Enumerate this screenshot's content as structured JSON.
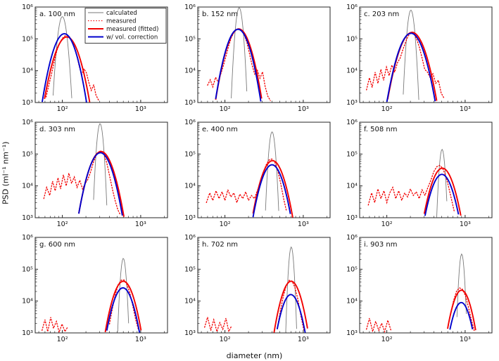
{
  "figure": {
    "xlabel": "diameter (nm)",
    "ylabel": "PSD (ml⁻¹ nm⁻¹)"
  },
  "legend": {
    "entries": [
      {
        "key": "calculated",
        "label": "calculated"
      },
      {
        "key": "measured",
        "label": "measured"
      },
      {
        "key": "measured_fitted",
        "label": "measured (fitted)"
      },
      {
        "key": "vol_correction",
        "label": "w/ vol. correction"
      }
    ]
  },
  "styles": {
    "calculated_color": "#7a7a7a",
    "measured_color": "#f20000",
    "fitted_color": "#f20000",
    "vol_correction_color": "#0000cd",
    "axis_color": "#262626",
    "background": "#ffffff"
  },
  "axes": {
    "x": {
      "scale": "log",
      "min": 45,
      "max": 2200,
      "major_ticks": [
        100,
        1000
      ],
      "tick_labels": [
        "10²",
        "10³"
      ],
      "minor_ticks": [
        50,
        60,
        70,
        80,
        90,
        200,
        300,
        400,
        500,
        600,
        700,
        800,
        900,
        2000
      ]
    },
    "y": {
      "scale": "log",
      "min": 1000,
      "max": 1000000,
      "major_ticks": [
        1000,
        10000,
        100000,
        1000000
      ],
      "tick_labels": [
        "10³",
        "10⁴",
        "10⁵",
        "10⁶"
      ]
    }
  },
  "chart_data": {
    "type": "line",
    "xlabel": "diameter (nm)",
    "ylabel": "PSD (ml-1 nm-1)",
    "panels": [
      {
        "label": "a. 100 nm",
        "nominal_size_nm": 100,
        "calculated": {
          "center": 100,
          "peak": 500000.0,
          "sigma_log10": 0.035
        },
        "measured_fitted": {
          "center": 114,
          "peak": 115000.0,
          "sigma_log10": 0.095
        },
        "vol_correction": {
          "center": 106,
          "peak": 145000.0,
          "sigma_log10": 0.09
        },
        "measured_points": [
          [
            62,
            1500.0
          ],
          [
            68,
            4000.0
          ],
          [
            74,
            9500.0
          ],
          [
            80,
            23000.0
          ],
          [
            86,
            46000.0
          ],
          [
            93,
            76000.0
          ],
          [
            100,
            104000.0
          ],
          [
            108,
            124000.0
          ],
          [
            116,
            130000.0
          ],
          [
            124,
            114000.0
          ],
          [
            133,
            86000.0
          ],
          [
            143,
            54000.0
          ],
          [
            153,
            29000.0
          ],
          [
            164,
            14000.0
          ],
          [
            176,
            7500.0
          ],
          [
            189,
            11500.0
          ],
          [
            203,
            8500.0
          ],
          [
            218,
            4200.0
          ],
          [
            234,
            2400.0
          ],
          [
            251,
            3600.0
          ],
          [
            269,
            1700.0
          ],
          [
            289,
            1200.0
          ]
        ]
      },
      {
        "label": "b. 152 nm",
        "nominal_size_nm": 152,
        "calculated": {
          "center": 152,
          "peak": 950000.0,
          "sigma_log10": 0.028
        },
        "measured_fitted": {
          "center": 150,
          "peak": 205000.0,
          "sigma_log10": 0.092
        },
        "vol_correction": {
          "center": 147,
          "peak": 200000.0,
          "sigma_log10": 0.09
        },
        "measured_points": [
          [
            60,
            3500.0
          ],
          [
            65,
            5200.0
          ],
          [
            70,
            3100.0
          ],
          [
            76,
            6200.0
          ],
          [
            82,
            4400.0
          ],
          [
            89,
            8200.0
          ],
          [
            96,
            15000.0
          ],
          [
            104,
            31000.0
          ],
          [
            112,
            62000.0
          ],
          [
            121,
            112000.0
          ],
          [
            131,
            162000.0
          ],
          [
            141,
            196000.0
          ],
          [
            152,
            206000.0
          ],
          [
            164,
            182000.0
          ],
          [
            177,
            132000.0
          ],
          [
            191,
            76000.0
          ],
          [
            206,
            34000.0
          ],
          [
            222,
            15000.0
          ],
          [
            240,
            7800.0
          ],
          [
            259,
            10500.0
          ],
          [
            280,
            5800.0
          ],
          [
            302,
            9200.0
          ],
          [
            326,
            3200.0
          ],
          [
            352,
            1600.0
          ],
          [
            380,
            1150.0
          ]
        ]
      },
      {
        "label": "c. 203 nm",
        "nominal_size_nm": 203,
        "calculated": {
          "center": 203,
          "peak": 800000.0,
          "sigma_log10": 0.028
        },
        "measured_fitted": {
          "center": 210,
          "peak": 160000.0,
          "sigma_log10": 0.1
        },
        "vol_correction": {
          "center": 204,
          "peak": 150000.0,
          "sigma_log10": 0.098
        },
        "measured_points": [
          [
            55,
            2500.0
          ],
          [
            60,
            6000.0
          ],
          [
            65,
            3000.0
          ],
          [
            71,
            9000.0
          ],
          [
            77,
            4000.0
          ],
          [
            84,
            11000.0
          ],
          [
            91,
            5000.0
          ],
          [
            99,
            13000.0
          ],
          [
            107,
            7000.0
          ],
          [
            116,
            15000.0
          ],
          [
            126,
            9000.0
          ],
          [
            137,
            18000.0
          ],
          [
            148,
            25000.0
          ],
          [
            160,
            45000.0
          ],
          [
            174,
            80000.0
          ],
          [
            188,
            125000.0
          ],
          [
            204,
            155000.0
          ],
          [
            221,
            145000.0
          ],
          [
            240,
            100000.0
          ],
          [
            260,
            55000.0
          ],
          [
            282,
            25000.0
          ],
          [
            305,
            11000.0
          ],
          [
            331,
            9000.0
          ],
          [
            358,
            6000.0
          ],
          [
            388,
            8000.0
          ],
          [
            421,
            4000.0
          ],
          [
            456,
            5000.0
          ],
          [
            494,
            2000.0
          ],
          [
            535,
            1400.0
          ]
        ]
      },
      {
        "label": "d. 303 nm",
        "nominal_size_nm": 303,
        "calculated": {
          "center": 303,
          "peak": 900000.0,
          "sigma_log10": 0.025
        },
        "measured_fitted": {
          "center": 312,
          "peak": 120000.0,
          "sigma_log10": 0.095
        },
        "vol_correction": {
          "center": 306,
          "peak": 110000.0,
          "sigma_log10": 0.093
        },
        "measured_points": [
          [
            58,
            4000.0
          ],
          [
            63,
            9000.0
          ],
          [
            69,
            5000.0
          ],
          [
            75,
            14000.0
          ],
          [
            81,
            7000.0
          ],
          [
            88,
            18000.0
          ],
          [
            95,
            8000.0
          ],
          [
            103,
            22000.0
          ],
          [
            112,
            10000.0
          ],
          [
            121,
            25000.0
          ],
          [
            131,
            12000.0
          ],
          [
            142,
            19000.0
          ],
          [
            154,
            9000.0
          ],
          [
            167,
            15000.0
          ],
          [
            181,
            8000.0
          ],
          [
            196,
            12000.0
          ],
          [
            212,
            16000.0
          ],
          [
            230,
            28000.0
          ],
          [
            249,
            55000.0
          ],
          [
            270,
            90000.0
          ],
          [
            292,
            120000.0
          ],
          [
            316,
            125000.0
          ],
          [
            342,
            95000.0
          ],
          [
            371,
            50000.0
          ],
          [
            402,
            20000.0
          ],
          [
            435,
            8000.0
          ],
          [
            471,
            3500.0
          ],
          [
            510,
            1800.0
          ],
          [
            553,
            1200.0
          ]
        ]
      },
      {
        "label": "e. 400 nm",
        "nominal_size_nm": 400,
        "calculated": {
          "center": 400,
          "peak": 500000.0,
          "sigma_log10": 0.025
        },
        "measured_fitted": {
          "center": 405,
          "peak": 62000.0,
          "sigma_log10": 0.09
        },
        "vol_correction": {
          "center": 399,
          "peak": 46000.0,
          "sigma_log10": 0.088
        },
        "measured_points": [
          [
            58,
            3000.0
          ],
          [
            64,
            6000.0
          ],
          [
            70,
            3500.0
          ],
          [
            77,
            7000.0
          ],
          [
            84,
            4000.0
          ],
          [
            92,
            6500.0
          ],
          [
            100,
            3500.0
          ],
          [
            109,
            7500.0
          ],
          [
            119,
            4500.0
          ],
          [
            130,
            6000.0
          ],
          [
            142,
            3000.0
          ],
          [
            155,
            5500.0
          ],
          [
            169,
            4000.0
          ],
          [
            184,
            6500.0
          ],
          [
            200,
            3500.0
          ],
          [
            218,
            5000.0
          ],
          [
            238,
            4000.0
          ],
          [
            259,
            7000.0
          ],
          [
            282,
            12000.0
          ],
          [
            307,
            25000.0
          ],
          [
            335,
            45000.0
          ],
          [
            365,
            65000.0
          ],
          [
            398,
            70000.0
          ],
          [
            434,
            55000.0
          ],
          [
            473,
            30000.0
          ],
          [
            515,
            12000.0
          ],
          [
            561,
            4000.0
          ],
          [
            611,
            1600.0
          ]
        ]
      },
      {
        "label": "f. 508 nm",
        "nominal_size_nm": 508,
        "calculated": {
          "center": 508,
          "peak": 140000.0,
          "sigma_log10": 0.022
        },
        "measured_fitted": {
          "center": 512,
          "peak": 36000.0,
          "sigma_log10": 0.09
        },
        "vol_correction": {
          "center": 505,
          "peak": 23000.0,
          "sigma_log10": 0.088
        },
        "measured_points": [
          [
            58,
            2500.0
          ],
          [
            64,
            6000.0
          ],
          [
            70,
            3000.0
          ],
          [
            77,
            8000.0
          ],
          [
            84,
            4000.0
          ],
          [
            92,
            7000.0
          ],
          [
            100,
            3000.0
          ],
          [
            109,
            6000.0
          ],
          [
            119,
            9000.0
          ],
          [
            130,
            4000.0
          ],
          [
            142,
            7000.0
          ],
          [
            155,
            3500.0
          ],
          [
            169,
            6000.0
          ],
          [
            184,
            4500.0
          ],
          [
            200,
            8000.0
          ],
          [
            218,
            5000.0
          ],
          [
            238,
            6500.0
          ],
          [
            259,
            4000.0
          ],
          [
            282,
            7500.0
          ],
          [
            307,
            5000.0
          ],
          [
            335,
            9000.0
          ],
          [
            365,
            15000.0
          ],
          [
            398,
            28000.0
          ],
          [
            434,
            40000.0
          ],
          [
            473,
            44000.0
          ],
          [
            515,
            36000.0
          ],
          [
            561,
            22000.0
          ],
          [
            611,
            10000.0
          ],
          [
            666,
            4000.0
          ],
          [
            725,
            1600.0
          ]
        ]
      },
      {
        "label": "g. 600 nm",
        "nominal_size_nm": 600,
        "calculated": {
          "center": 600,
          "peak": 220000.0,
          "sigma_log10": 0.022
        },
        "measured_fitted": {
          "center": 600,
          "peak": 42000.0,
          "sigma_log10": 0.085
        },
        "vol_correction": {
          "center": 594,
          "peak": 26000.0,
          "sigma_log10": 0.083
        },
        "measured_points": [
          [
            55,
            1200.0
          ],
          [
            60,
            2600.0
          ],
          [
            65,
            1100.0
          ],
          [
            71,
            3100.0
          ],
          [
            77,
            1400.0
          ],
          [
            84,
            2300.0
          ],
          [
            91,
            1050.0
          ],
          [
            99,
            1900.0
          ],
          [
            108,
            1100.0
          ],
          [
            118,
            1600.0
          ],
          null,
          [
            400,
            1900.0
          ],
          [
            436,
            6000.0
          ],
          [
            475,
            16000.0
          ],
          [
            517,
            33000.0
          ],
          [
            563,
            45000.0
          ],
          [
            613,
            46000.0
          ],
          [
            668,
            33000.0
          ],
          [
            728,
            18000.0
          ],
          [
            793,
            7000.0
          ],
          [
            864,
            2600.0
          ],
          [
            941,
            1200.0
          ]
        ]
      },
      {
        "label": "h. 702 nm",
        "nominal_size_nm": 702,
        "calculated": {
          "center": 702,
          "peak": 500000.0,
          "sigma_log10": 0.02
        },
        "measured_fitted": {
          "center": 700,
          "peak": 42000.0,
          "sigma_log10": 0.08
        },
        "vol_correction": {
          "center": 694,
          "peak": 16000.0,
          "sigma_log10": 0.078
        },
        "measured_points": [
          [
            55,
            1500.0
          ],
          [
            60,
            3100.0
          ],
          [
            66,
            1200.0
          ],
          [
            72,
            2600.0
          ],
          [
            79,
            1100.0
          ],
          [
            86,
            2100.0
          ],
          [
            94,
            1300.0
          ],
          [
            103,
            2900.0
          ],
          [
            112,
            1100.0
          ],
          [
            122,
            1700.0
          ],
          null,
          [
            470,
            1500.0
          ],
          [
            512,
            5200.0
          ],
          [
            558,
            14500.0
          ],
          [
            608,
            31000.0
          ],
          [
            662,
            45000.0
          ],
          [
            721,
            42000.0
          ],
          [
            786,
            26000.0
          ],
          [
            856,
            11000.0
          ],
          [
            933,
            3400.0
          ],
          [
            1016,
            1250.0
          ]
        ]
      },
      {
        "label": "i. 903 nm",
        "nominal_size_nm": 903,
        "calculated": {
          "center": 903,
          "peak": 300000.0,
          "sigma_log10": 0.02
        },
        "measured_fitted": {
          "center": 898,
          "peak": 22000.0,
          "sigma_log10": 0.075
        },
        "vol_correction": {
          "center": 892,
          "peak": 9000.0,
          "sigma_log10": 0.073
        },
        "measured_points": [
          [
            55,
            1300.0
          ],
          [
            60,
            2900.0
          ],
          [
            66,
            1100.0
          ],
          [
            72,
            2300.0
          ],
          [
            79,
            1200.0
          ],
          [
            86,
            2000.0
          ],
          [
            94,
            1100.0
          ],
          [
            103,
            2500.0
          ],
          [
            113,
            1200.0
          ],
          null,
          [
            600,
            1400.0
          ],
          [
            654,
            4200.0
          ],
          [
            713,
            10500.0
          ],
          [
            777,
            20500.0
          ],
          [
            847,
            26000.0
          ],
          [
            923,
            23500.0
          ],
          [
            1006,
            15000.0
          ],
          [
            1096,
            6800.0
          ],
          [
            1195,
            2700.0
          ],
          [
            1302,
            1200.0
          ]
        ]
      }
    ]
  }
}
